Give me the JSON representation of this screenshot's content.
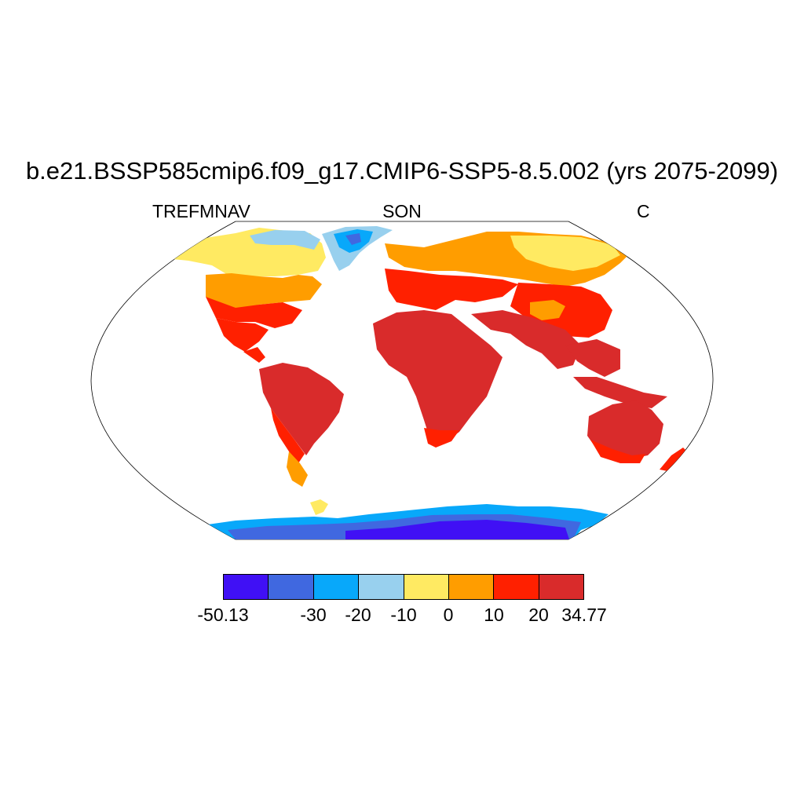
{
  "title": "b.e21.BSSP585cmip6.f09_g17.CMIP6-SSP5-8.5.002 (yrs 2075-2099)",
  "subtitle_left": "TREFMNAV",
  "subtitle_center": "SON",
  "subtitle_right": "C",
  "colorbar": {
    "colors": [
      "#4010f5",
      "#4068e0",
      "#08a8fa",
      "#98d0ee",
      "#ffea62",
      "#ff9d00",
      "#ff2000",
      "#d92b2b"
    ],
    "labels": [
      "-50.13",
      "-30",
      "-20",
      "-10",
      "0",
      "10",
      "20",
      "34.77"
    ]
  },
  "map": {
    "projection": "Robinson",
    "variable": "TREFMNAV",
    "season": "SON",
    "units": "C"
  }
}
